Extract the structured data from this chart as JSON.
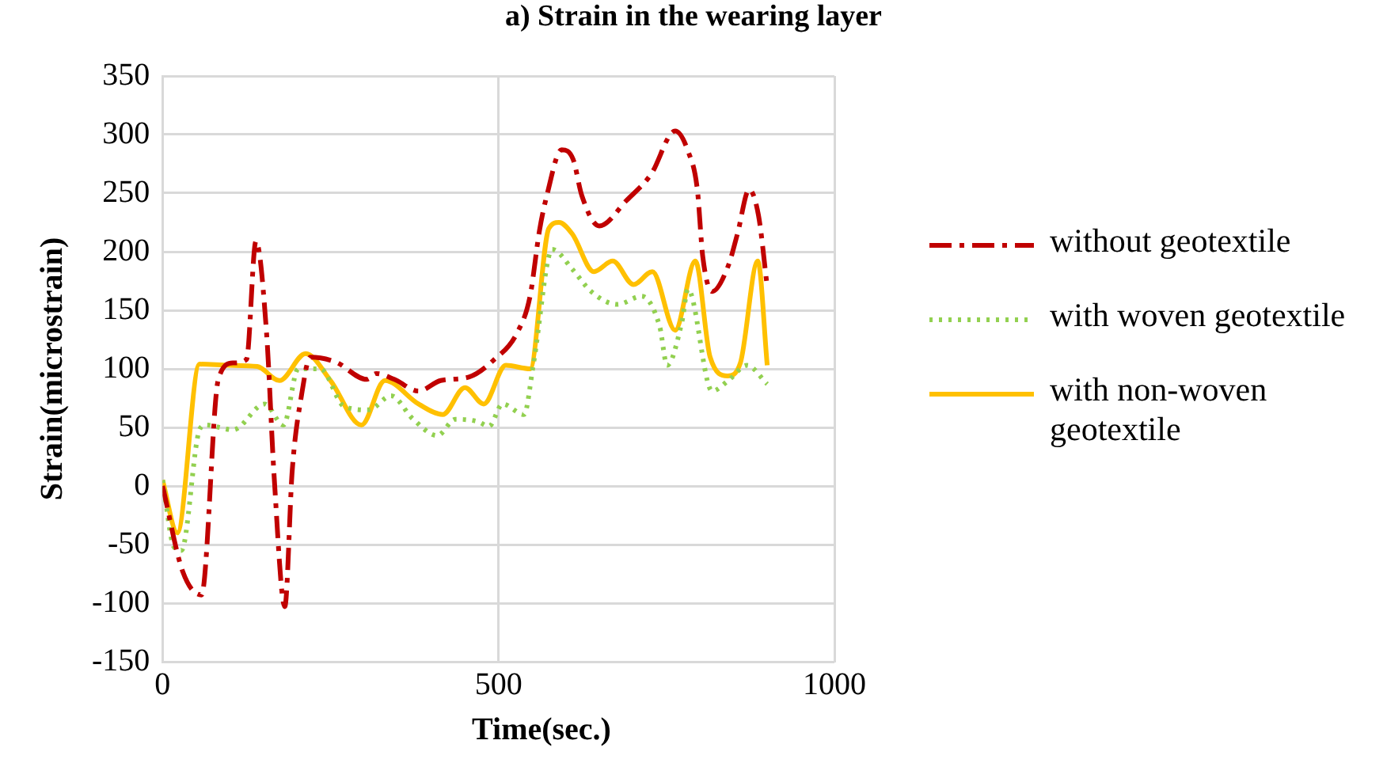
{
  "chart_data": {
    "type": "line",
    "title": "a) Strain in the wearing layer",
    "xlabel": "Time(sec.)",
    "ylabel": "Strain(microstrain)",
    "xlim": [
      0,
      1000
    ],
    "xticks": [
      0,
      500,
      1000
    ],
    "ylim": [
      -150,
      350
    ],
    "yticks": [
      -150,
      -100,
      -50,
      0,
      50,
      100,
      150,
      200,
      250,
      300,
      350
    ],
    "grid": true,
    "legend": "right",
    "marker": "none",
    "series": [
      {
        "name": "without geotextile",
        "color": "#c00000",
        "line_style": "dashed",
        "x": [
          0,
          30,
          58,
          83,
          105,
          125,
          139,
          155,
          166,
          182,
          193,
          207,
          220,
          257,
          304,
          318,
          345,
          381,
          414,
          456,
          492,
          528,
          547,
          561,
          572,
          594,
          611,
          624,
          650,
          691,
          727,
          763,
          782,
          796,
          804,
          818,
          842,
          856,
          873,
          887,
          900
        ],
        "values": [
          0,
          -73,
          -93,
          91,
          105,
          108,
          209,
          129,
          9,
          -103,
          13,
          78,
          110,
          106,
          91,
          96,
          91,
          81,
          90,
          93,
          107,
          131,
          162,
          218,
          248,
          287,
          279,
          248,
          222,
          244,
          266,
          303,
          286,
          253,
          196,
          166,
          188,
          216,
          253,
          231,
          170
        ]
      },
      {
        "name": "with woven geotextile",
        "color": "#92d050",
        "line_style": "dotted",
        "x": [
          0,
          17,
          28,
          55,
          64,
          105,
          152,
          180,
          202,
          235,
          270,
          307,
          340,
          373,
          409,
          436,
          469,
          486,
          506,
          538,
          552,
          580,
          610,
          638,
          677,
          713,
          740,
          751,
          773,
          782,
          818,
          842,
          870,
          900
        ],
        "values": [
          5,
          -52,
          -55,
          48,
          52,
          48,
          70,
          52,
          100,
          100,
          68,
          65,
          77,
          57,
          43,
          57,
          55,
          51,
          70,
          61,
          104,
          202,
          185,
          166,
          155,
          162,
          136,
          103,
          140,
          168,
          81,
          90,
          103,
          87
        ]
      },
      {
        "name": "with non-woven geotextile",
        "color": "#ffc000",
        "line_style": "solid",
        "x": [
          0,
          22,
          55,
          100,
          141,
          174,
          213,
          250,
          296,
          331,
          381,
          417,
          450,
          478,
          511,
          547,
          575,
          590,
          610,
          642,
          670,
          701,
          729,
          763,
          793,
          815,
          841,
          860,
          886,
          900
        ],
        "values": [
          5,
          -40,
          104,
          103,
          102,
          90,
          113,
          90,
          52,
          90,
          70,
          61,
          84,
          70,
          103,
          100,
          220,
          225,
          215,
          183,
          192,
          172,
          183,
          133,
          192,
          110,
          94,
          105,
          192,
          103
        ]
      }
    ]
  }
}
